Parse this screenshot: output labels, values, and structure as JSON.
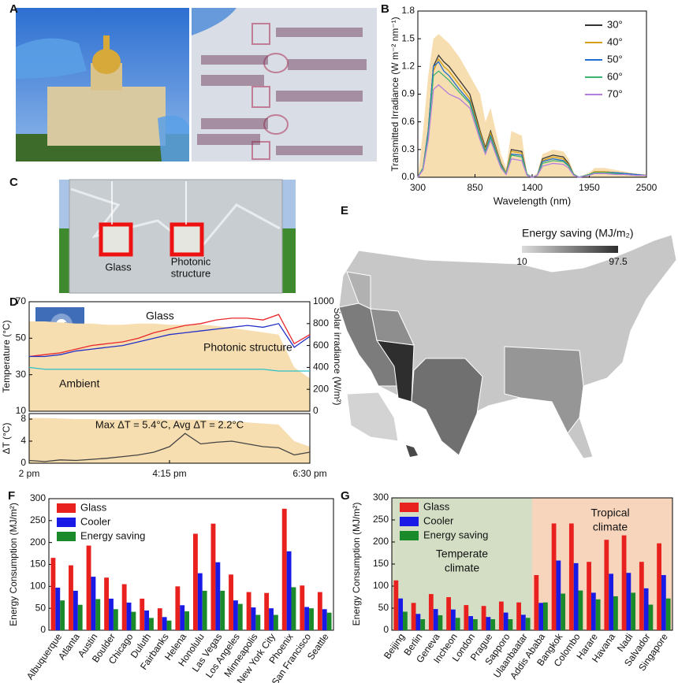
{
  "panel_labels": [
    "A",
    "B",
    "C",
    "D",
    "E",
    "F",
    "G"
  ],
  "photo_c_labels": [
    [
      "Glass"
    ],
    [
      "Photonic",
      "structure"
    ]
  ],
  "chart_data": [
    {
      "type": "line",
      "panel": "B",
      "xlabel": "Wavelength (nm)",
      "ylabel": "Transmitted Irradiance (W m⁻² nm⁻¹)",
      "x": [
        300,
        350,
        400,
        450,
        500,
        550,
        600,
        700,
        800,
        900,
        950,
        1000,
        1100,
        1150,
        1200,
        1300,
        1350,
        1400,
        1450,
        1500,
        1600,
        1700,
        1750,
        1800,
        1850,
        1950,
        2000,
        2100,
        2200,
        2300,
        2400,
        2500
      ],
      "xlim": [
        300,
        2500
      ],
      "xticks": [
        300,
        850,
        1400,
        1950,
        2500
      ],
      "ylim": [
        0,
        1.8
      ],
      "yticks": [
        {
          "value": 0,
          "label": "0.0"
        },
        0.3,
        0.6,
        0.9,
        1.2,
        1.5,
        1.8
      ],
      "legend": "upper right",
      "area_series": {
        "color": "#f7deb0",
        "values": [
          0,
          0.5,
          1.1,
          1.5,
          1.55,
          1.5,
          1.45,
          1.3,
          1.1,
          0.9,
          0.6,
          0.75,
          0.25,
          0.1,
          0.5,
          0.45,
          0.05,
          0,
          0.05,
          0.25,
          0.3,
          0.28,
          0.2,
          0.05,
          0,
          0.05,
          0.1,
          0.1,
          0.08,
          0.06,
          0.04,
          0.03
        ]
      },
      "series": [
        {
          "name": "30°",
          "color": "#333333",
          "values": [
            0,
            0.1,
            0.5,
            1.2,
            1.32,
            1.25,
            1.2,
            1.05,
            0.9,
            0.5,
            0.32,
            0.5,
            0.15,
            0.05,
            0.3,
            0.28,
            0.03,
            0,
            0.02,
            0.2,
            0.24,
            0.22,
            0.15,
            0.03,
            0,
            0.03,
            0.06,
            0.06,
            0.05,
            0.04,
            0.03,
            0.02
          ]
        },
        {
          "name": "40°",
          "color": "#d4a017",
          "values": [
            0,
            0.1,
            0.5,
            1.15,
            1.28,
            1.2,
            1.15,
            1.0,
            0.85,
            0.48,
            0.3,
            0.48,
            0.14,
            0.05,
            0.28,
            0.26,
            0.03,
            0,
            0.02,
            0.18,
            0.22,
            0.2,
            0.14,
            0.03,
            0,
            0.03,
            0.06,
            0.06,
            0.05,
            0.04,
            0.03,
            0.02
          ]
        },
        {
          "name": "50°",
          "color": "#1f6fd0",
          "values": [
            0,
            0.1,
            0.5,
            1.2,
            1.25,
            1.15,
            1.1,
            0.95,
            0.82,
            0.45,
            0.28,
            0.45,
            0.13,
            0.04,
            0.25,
            0.24,
            0.03,
            0,
            0.02,
            0.17,
            0.2,
            0.18,
            0.13,
            0.03,
            0,
            0.03,
            0.05,
            0.05,
            0.05,
            0.04,
            0.03,
            0.02
          ]
        },
        {
          "name": "60°",
          "color": "#3cb371",
          "values": [
            0,
            0.1,
            0.45,
            1.1,
            1.15,
            1.1,
            1.05,
            0.92,
            0.8,
            0.43,
            0.27,
            0.43,
            0.12,
            0.04,
            0.24,
            0.22,
            0.03,
            0,
            0.02,
            0.15,
            0.18,
            0.17,
            0.12,
            0.03,
            0,
            0.03,
            0.05,
            0.05,
            0.04,
            0.03,
            0.02,
            0.02
          ]
        },
        {
          "name": "70°",
          "color": "#b57edc",
          "values": [
            0,
            0.08,
            0.4,
            0.95,
            1.0,
            0.95,
            0.9,
            0.85,
            0.75,
            0.4,
            0.25,
            0.4,
            0.1,
            0.03,
            0.2,
            0.18,
            0.02,
            0,
            0.02,
            0.12,
            0.15,
            0.14,
            0.1,
            0.02,
            0,
            0.02,
            0.04,
            0.04,
            0.03,
            0.03,
            0.02,
            0.02
          ]
        }
      ]
    },
    {
      "type": "line",
      "panel": "D",
      "ylabel": "Temperature (°C)",
      "y2label": "Solar irradiance (W/m²)",
      "x": [
        0,
        15,
        30,
        45,
        60,
        75,
        90,
        105,
        120,
        135,
        150,
        165,
        180,
        195,
        210,
        225,
        240,
        255,
        270
      ],
      "xlim": [
        0,
        270
      ],
      "ylim": [
        10,
        70
      ],
      "yticks": [
        10,
        30,
        50,
        70
      ],
      "y2lim": [
        0,
        1000
      ],
      "y2ticks": [
        0,
        200,
        400,
        600,
        800,
        1000
      ],
      "area_series": {
        "axis": "y2",
        "color": "#f7deb0",
        "values": [
          820,
          820,
          810,
          800,
          800,
          790,
          790,
          800,
          800,
          790,
          790,
          790,
          780,
          760,
          740,
          720,
          700,
          400,
          300
        ]
      },
      "series": [
        {
          "name": "Glass",
          "color": "#e8262a",
          "values": [
            40,
            41,
            42,
            44,
            46,
            47,
            48,
            50,
            53,
            55,
            57,
            58,
            60,
            61,
            61,
            60,
            63,
            47,
            52
          ]
        },
        {
          "name": "Photonic structure",
          "color": "#2430c8",
          "values": [
            40,
            40,
            41,
            43,
            44,
            45,
            46,
            48,
            50,
            52,
            53,
            54,
            55,
            56,
            57,
            56,
            58,
            45,
            51
          ]
        },
        {
          "name": "Ambient",
          "color": "#2cc0c8",
          "values": [
            34,
            33,
            33,
            33,
            33,
            33,
            33,
            33,
            33,
            33,
            33,
            33,
            33,
            33,
            33,
            33,
            32,
            32,
            32
          ]
        }
      ]
    },
    {
      "type": "line",
      "panel": "D",
      "ylabel": "ΔT (°C)",
      "annotation": "Max ΔT = 5.4°C, Avg ΔT = 2.2°C",
      "x": [
        0,
        15,
        30,
        45,
        60,
        75,
        90,
        105,
        120,
        135,
        150,
        165,
        180,
        195,
        210,
        225,
        240,
        255,
        270
      ],
      "xlim": [
        0,
        270
      ],
      "xticks": [
        {
          "value": 0,
          "label": "2 pm"
        },
        {
          "value": 135,
          "label": "4:15 pm"
        },
        {
          "value": 270,
          "label": "6:30 pm"
        }
      ],
      "ylim": [
        0,
        9
      ],
      "yticks": [
        0,
        4,
        8
      ],
      "area_series": {
        "color": "#f7deb0",
        "values": [
          8.2,
          8.2,
          8.1,
          8,
          8,
          7.9,
          7.9,
          8,
          8,
          7.9,
          7.9,
          7.9,
          7.8,
          7.6,
          7.4,
          7.2,
          7,
          4,
          3
        ]
      },
      "series": [
        {
          "color": "#444444",
          "values": [
            0.5,
            0.3,
            0.6,
            0.5,
            0.7,
            0.9,
            1.2,
            1.5,
            2,
            3,
            5.4,
            3.5,
            3.8,
            4,
            3.5,
            3,
            2.8,
            1.5,
            2
          ]
        }
      ]
    },
    {
      "type": "map",
      "panel": "E",
      "legend_title": "Energy saving (MJ/m₂)",
      "colorbar": {
        "min": 10,
        "max": 97.5,
        "colors": [
          "#dcdcdc",
          "#2e2e2e"
        ]
      }
    },
    {
      "type": "bar",
      "panel": "F",
      "ylabel": "Energy Consumption (MJ/m²)",
      "ylim": [
        0,
        300
      ],
      "yticks": [
        0,
        50,
        100,
        150,
        200,
        250,
        300
      ],
      "legend": "upper left",
      "categories": [
        "Albuquerque",
        "Atlanta",
        "Austin",
        "Boulder",
        "Chicago",
        "Duluth",
        "Fairbanks",
        "Helena",
        "Honolulu",
        "Las Vegas",
        "Los Angeles",
        "Minneapolis",
        "New York City",
        "Phoenix",
        "San Francisco",
        "Seattle"
      ],
      "series": [
        {
          "name": "Glass",
          "color": "#e8201e",
          "values": [
            165,
            148,
            193,
            120,
            105,
            72,
            50,
            100,
            220,
            243,
            127,
            87,
            85,
            277,
            102,
            87
          ]
        },
        {
          "name": "Cooler",
          "color": "#1a1ae6",
          "values": [
            97,
            90,
            122,
            72,
            63,
            45,
            30,
            57,
            130,
            155,
            68,
            52,
            50,
            180,
            53,
            48
          ]
        },
        {
          "name": "Energy saving",
          "color": "#1a8a2a",
          "values": [
            68,
            58,
            71,
            48,
            42,
            28,
            22,
            43,
            90,
            90,
            60,
            35,
            35,
            98,
            50,
            40
          ]
        }
      ]
    },
    {
      "type": "bar",
      "panel": "G",
      "ylabel": "Energy Consumption (MJ/m²)",
      "ylim": [
        0,
        300
      ],
      "yticks": [
        0,
        50,
        100,
        150,
        200,
        250,
        300
      ],
      "legend": "upper left",
      "categories": [
        "Beijing",
        "Berlin",
        "Geneva",
        "Incheon",
        "London",
        "Prague",
        "Sapporo",
        "Ulaanbaatar",
        "Addis Ababa",
        "Bangkok",
        "Colombo",
        "Harare",
        "Havana",
        "Nadi",
        "Salvador",
        "Singapore"
      ],
      "regions": [
        {
          "lines": [
            "Temperate",
            "climate"
          ],
          "span": [
            "Beijing",
            "Ulaanbaatar"
          ],
          "color": "#d3dec5"
        },
        {
          "lines": [
            "Tropical",
            "climate"
          ],
          "span": [
            "Addis Ababa",
            "Singapore"
          ],
          "color": "#f7d5bd"
        }
      ],
      "series": [
        {
          "name": "Glass",
          "color": "#e8201e",
          "values": [
            113,
            62,
            82,
            75,
            57,
            55,
            65,
            63,
            125,
            242,
            242,
            155,
            205,
            215,
            155,
            197
          ]
        },
        {
          "name": "Cooler",
          "color": "#1a1ae6",
          "values": [
            72,
            37,
            48,
            47,
            32,
            30,
            40,
            35,
            62,
            158,
            152,
            85,
            128,
            130,
            95,
            125
          ]
        },
        {
          "name": "Energy saving",
          "color": "#1a8a2a",
          "values": [
            42,
            25,
            34,
            28,
            25,
            25,
            25,
            28,
            63,
            83,
            90,
            70,
            77,
            85,
            58,
            72
          ]
        }
      ]
    }
  ]
}
